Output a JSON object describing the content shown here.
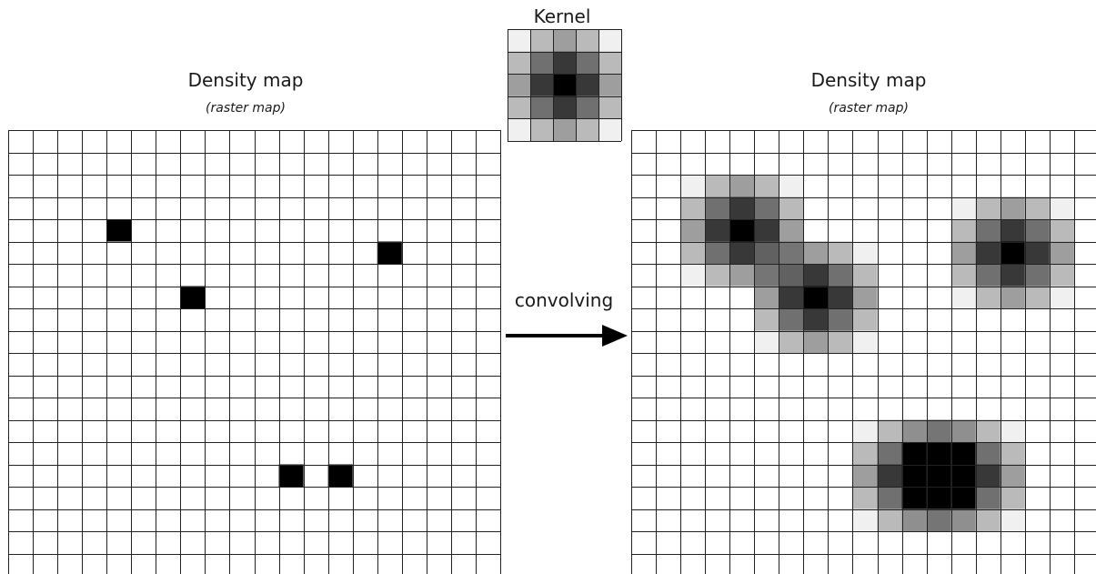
{
  "kernel": {
    "title": "Kernel",
    "size": 5,
    "values": [
      [
        0.06,
        0.27,
        0.38,
        0.27,
        0.06
      ],
      [
        0.27,
        0.56,
        0.78,
        0.56,
        0.27
      ],
      [
        0.38,
        0.78,
        1.0,
        0.78,
        0.38
      ],
      [
        0.27,
        0.56,
        0.78,
        0.56,
        0.27
      ],
      [
        0.06,
        0.27,
        0.38,
        0.27,
        0.06
      ]
    ]
  },
  "left_map": {
    "title": "Density map",
    "subtitle": "(raster map)",
    "columns": 20,
    "rows": 20,
    "filled_cells": [
      {
        "col": 4,
        "row": 4
      },
      {
        "col": 15,
        "row": 5
      },
      {
        "col": 7,
        "row": 7
      },
      {
        "col": 11,
        "row": 15
      },
      {
        "col": 13,
        "row": 15
      }
    ]
  },
  "operation": {
    "label": "convolving"
  },
  "right_map": {
    "title": "Density map",
    "subtitle": "(raster map)",
    "columns": 20,
    "rows": 20,
    "note": ""
  },
  "colors": {
    "grid_line": "#222222",
    "cell_fill": "#000000",
    "background": "#ffffff"
  }
}
